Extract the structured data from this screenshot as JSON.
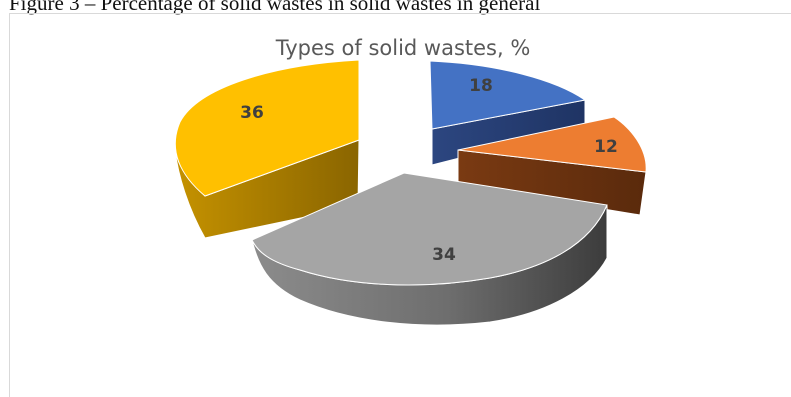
{
  "caption_fragment": "Figure 3 – Percentage of solid wastes in solid wastes in general",
  "colors": {
    "blue": "#4472c4",
    "orange": "#ed7d31",
    "gray": "#a5a5a5",
    "yellow": "#ffc000"
  },
  "chart_data": {
    "type": "pie",
    "style": "3d-exploded",
    "title": "Types of solid wastes, %",
    "categories": [
      "",
      "",
      "",
      ""
    ],
    "values": [
      18,
      12,
      34,
      36
    ],
    "data_labels": [
      "18",
      "12",
      "34",
      "36"
    ],
    "legend": "none"
  }
}
